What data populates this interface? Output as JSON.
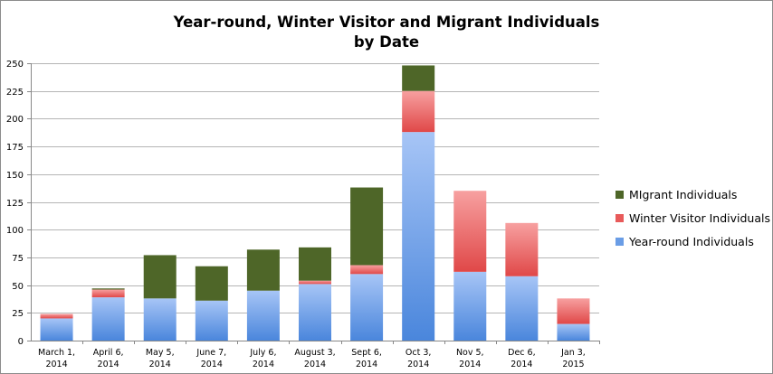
{
  "chart_data": {
    "type": "bar",
    "stacked": true,
    "title_lines": [
      "Year-round, Winter Visitor and Migrant Individuals",
      "by Date"
    ],
    "xlabel": "",
    "ylabel": "",
    "ylim": [
      0,
      250
    ],
    "yticks": [
      0,
      25,
      50,
      75,
      100,
      125,
      150,
      175,
      200,
      225,
      250
    ],
    "grid": true,
    "legend_position": "right",
    "categories": [
      "March 1, 2014",
      "April 6, 2014",
      "May 5, 2014",
      "June 7, 2014",
      "July 6, 2014",
      "August 3, 2014",
      "Sept 6, 2014",
      "Oct 3, 2014",
      "Nov 5, 2014",
      "Dec 6, 2014",
      "Jan 3, 2015"
    ],
    "series": [
      {
        "name": "Year-round Individuals",
        "color": "#6a9de6",
        "values": [
          20,
          39,
          38,
          36,
          45,
          51,
          60,
          188,
          62,
          58,
          15
        ]
      },
      {
        "name": "Winter Visitor Individuals",
        "color": "#e85a5a",
        "values": [
          4,
          7,
          0,
          0,
          0,
          3,
          8,
          37,
          73,
          48,
          23
        ]
      },
      {
        "name": "MIgrant Individuals",
        "color": "#4e6628",
        "values": [
          0,
          1,
          39,
          31,
          37,
          30,
          70,
          23,
          0,
          0,
          0
        ]
      }
    ],
    "legend_order": [
      "MIgrant Individuals",
      "Winter Visitor Individuals",
      "Year-round Individuals"
    ]
  }
}
